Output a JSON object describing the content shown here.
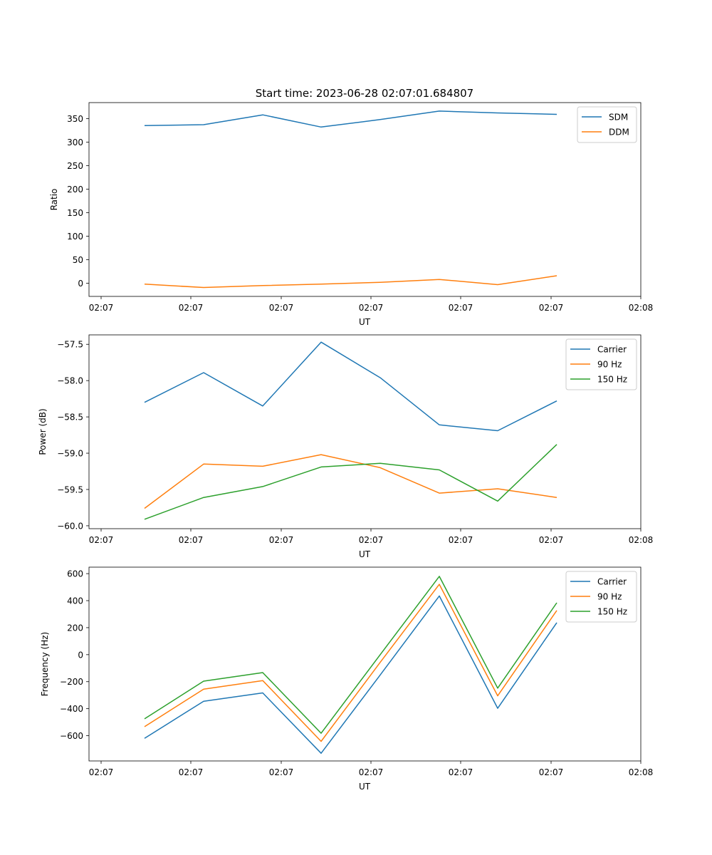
{
  "figure": {
    "title": "Start time: 2023-06-28 02:07:01.684807"
  },
  "colors": {
    "blue": "#1f77b4",
    "orange": "#ff7f0e",
    "green": "#2ca02c"
  },
  "chart_data": [
    {
      "type": "line",
      "xlabel": "UT",
      "ylabel": "Ratio",
      "x_tick_labels": [
        "02:07",
        "02:07",
        "02:07",
        "02:07",
        "02:07",
        "02:07",
        "02:08"
      ],
      "y_ticks": [
        0,
        50,
        100,
        150,
        200,
        250,
        300,
        350
      ],
      "y_tick_labels": [
        "0",
        "50",
        "100",
        "150",
        "200",
        "250",
        "300",
        "350"
      ],
      "ylim": [
        -28,
        384
      ],
      "legend_position": "upper right",
      "series": [
        {
          "name": "SDM",
          "color": "#1f77b4",
          "values": [
            335,
            337,
            358,
            332,
            348,
            366,
            362,
            359
          ]
        },
        {
          "name": "DDM",
          "color": "#ff7f0e",
          "values": [
            -2,
            -9,
            -5,
            -2,
            2,
            8,
            -3,
            16
          ]
        }
      ]
    },
    {
      "type": "line",
      "xlabel": "UT",
      "ylabel": "Power (dB)",
      "x_tick_labels": [
        "02:07",
        "02:07",
        "02:07",
        "02:07",
        "02:07",
        "02:07",
        "02:08"
      ],
      "y_ticks": [
        -60.0,
        -59.5,
        -59.0,
        -58.5,
        -58.0,
        -57.5
      ],
      "y_tick_labels": [
        "−60.0",
        "−59.5",
        "−59.0",
        "−58.5",
        "−58.0",
        "−57.5"
      ],
      "ylim": [
        -60.04,
        -57.37
      ],
      "legend_position": "upper right",
      "series": [
        {
          "name": "Carrier",
          "color": "#1f77b4",
          "values": [
            -58.3,
            -57.89,
            -58.35,
            -57.47,
            -57.96,
            -58.61,
            -58.69,
            -58.28
          ]
        },
        {
          "name": "90 Hz",
          "color": "#ff7f0e",
          "values": [
            -59.76,
            -59.15,
            -59.18,
            -59.02,
            -59.2,
            -59.55,
            -59.49,
            -59.61
          ]
        },
        {
          "name": "150 Hz",
          "color": "#2ca02c",
          "values": [
            -59.91,
            -59.61,
            -59.46,
            -59.19,
            -59.14,
            -59.23,
            -59.66,
            -58.88
          ]
        }
      ]
    },
    {
      "type": "line",
      "xlabel": "UT",
      "ylabel": "Frequency (Hz)",
      "x_tick_labels": [
        "02:07",
        "02:07",
        "02:07",
        "02:07",
        "02:07",
        "02:07",
        "02:08"
      ],
      "y_ticks": [
        -600,
        -400,
        -200,
        0,
        200,
        400,
        600
      ],
      "y_tick_labels": [
        "−600",
        "−400",
        "−200",
        "0",
        "200",
        "400",
        "600"
      ],
      "ylim": [
        -787,
        648
      ],
      "legend_position": "upper right",
      "series": [
        {
          "name": "Carrier",
          "color": "#1f77b4",
          "values": [
            -620,
            -345,
            -283,
            -730,
            -150,
            435,
            -397,
            237
          ]
        },
        {
          "name": "90 Hz",
          "color": "#ff7f0e",
          "values": [
            -533,
            -255,
            -192,
            -642,
            -57,
            521,
            -305,
            327
          ]
        },
        {
          "name": "150 Hz",
          "color": "#2ca02c",
          "values": [
            -475,
            -196,
            -133,
            -582,
            0,
            580,
            -248,
            384
          ]
        }
      ]
    }
  ]
}
